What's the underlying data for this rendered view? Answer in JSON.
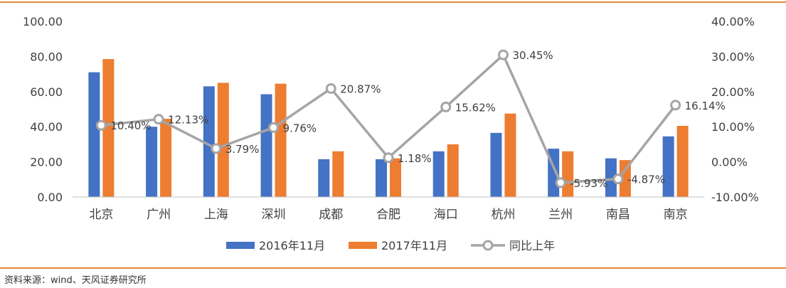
{
  "chart_data": {
    "type": "bar",
    "categories": [
      "北京",
      "广州",
      "上海",
      "深圳",
      "成都",
      "合肥",
      "海口",
      "杭州",
      "兰州",
      "南昌",
      "南京"
    ],
    "series": [
      {
        "name": "2016年11月",
        "type": "bar",
        "axis": "left",
        "color": "#4472c4",
        "values": [
          71,
          40,
          63,
          58.5,
          21.5,
          21.5,
          26,
          36.5,
          27.5,
          22,
          34.5
        ]
      },
      {
        "name": "2017年11月",
        "type": "bar",
        "axis": "left",
        "color": "#ed7d31",
        "values": [
          78.5,
          44.5,
          65,
          64.5,
          26,
          22,
          30,
          47.5,
          26,
          21,
          40.5
        ]
      },
      {
        "name": "同比上年",
        "type": "line",
        "axis": "right",
        "color": "#a5a5a5",
        "values": [
          10.4,
          12.13,
          3.79,
          9.76,
          20.87,
          1.18,
          15.62,
          30.45,
          -5.93,
          -4.87,
          16.14
        ],
        "labels": [
          "10.40%",
          "12.13%",
          "3.79%",
          "9.76%",
          "20.87%",
          "1.18%",
          "15.62%",
          "30.45%",
          "-5.93%",
          "-4.87%",
          "16.14%"
        ]
      }
    ],
    "y_left": {
      "range": [
        0,
        100
      ],
      "ticks": [
        "0.00",
        "20.00",
        "40.00",
        "60.00",
        "80.00",
        "100.00"
      ]
    },
    "y_right": {
      "range": [
        -10,
        40
      ],
      "ticks": [
        "-10.00%",
        "0.00%",
        "10.00%",
        "20.00%",
        "30.00%",
        "40.00%"
      ]
    },
    "grid": false,
    "legend": "bottom"
  },
  "source_text": "资料来源：wind、天风证券研究所"
}
